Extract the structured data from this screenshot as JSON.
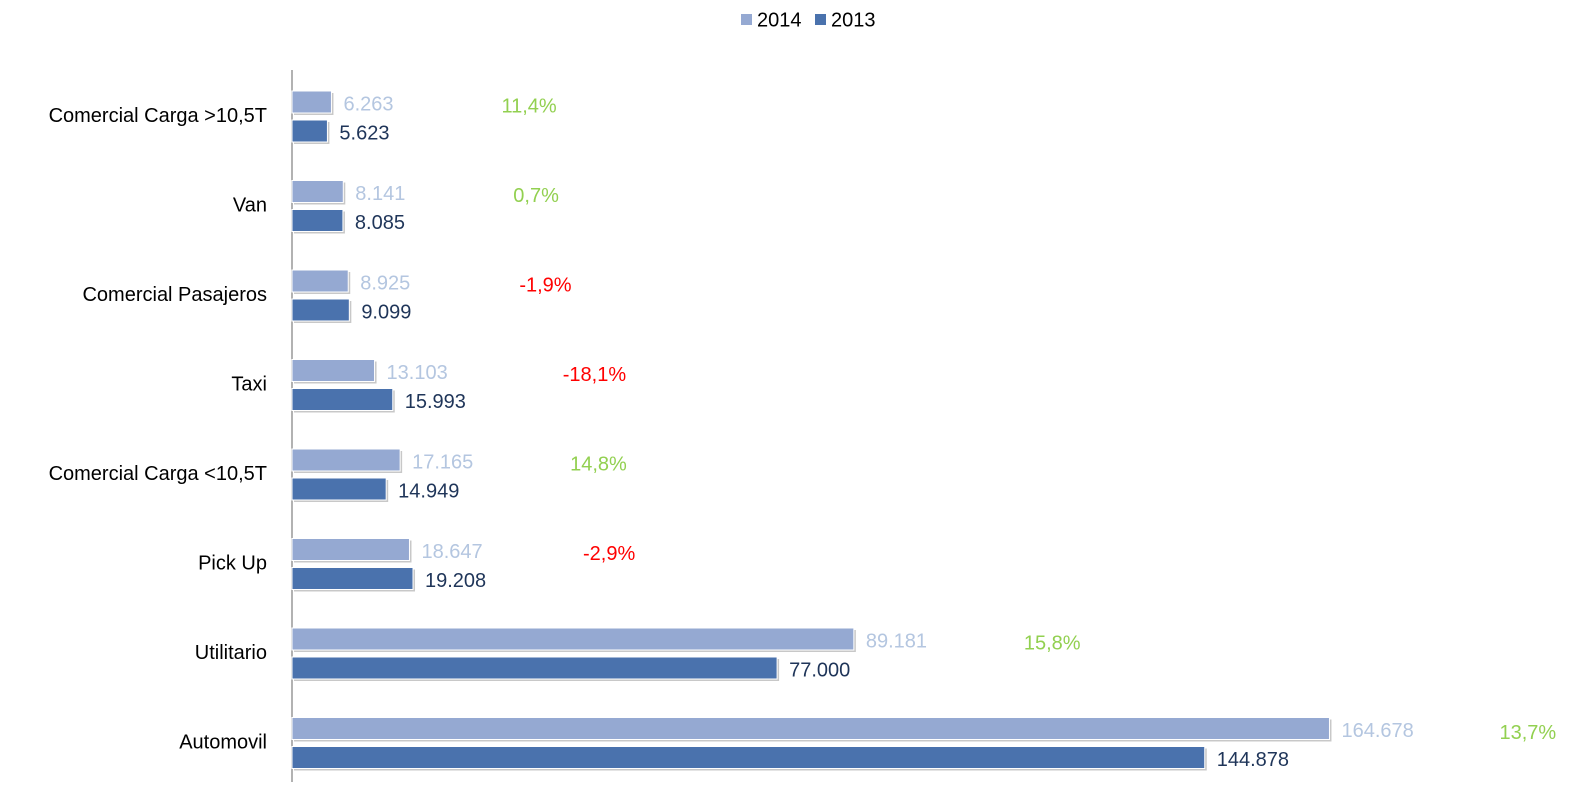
{
  "chart_data": {
    "type": "bar",
    "orientation": "horizontal",
    "categories": [
      "Comercial Carga >10,5T",
      "Van",
      "Comercial Pasajeros",
      "Taxi",
      "Comercial Carga <10,5T",
      "Pick Up",
      "Utilitario",
      "Automovil"
    ],
    "series": [
      {
        "name": "2014",
        "color": "#95a9d2",
        "label_color": "#b4c6e0",
        "values": [
          6263,
          8141,
          8925,
          13103,
          17165,
          18647,
          89181,
          164678
        ],
        "value_labels": [
          "6.263",
          "8.141",
          "8.925",
          "13.103",
          "17.165",
          "18.647",
          "89.181",
          "164.678"
        ]
      },
      {
        "name": "2013",
        "color": "#4a72ad",
        "label_color": "#1f3559",
        "values": [
          5623,
          8085,
          9099,
          15993,
          14949,
          19208,
          77000,
          144878
        ],
        "value_labels": [
          "5.623",
          "8.085",
          "9.099",
          "15.993",
          "14.949",
          "19.208",
          "77.000",
          "144.878"
        ]
      }
    ],
    "annotations": [
      {
        "text": "11,4%",
        "color": "#92d050"
      },
      {
        "text": "0,7%",
        "color": "#92d050"
      },
      {
        "text": "-1,9%",
        "color": "#ff0000"
      },
      {
        "text": "-18,1%",
        "color": "#ff0000"
      },
      {
        "text": "14,8%",
        "color": "#92d050"
      },
      {
        "text": "-2,9%",
        "color": "#ff0000"
      },
      {
        "text": "15,8%",
        "color": "#92d050"
      },
      {
        "text": "13,7%",
        "color": "#92d050"
      }
    ],
    "xlim": [
      0,
      200000
    ],
    "legend": "top"
  }
}
